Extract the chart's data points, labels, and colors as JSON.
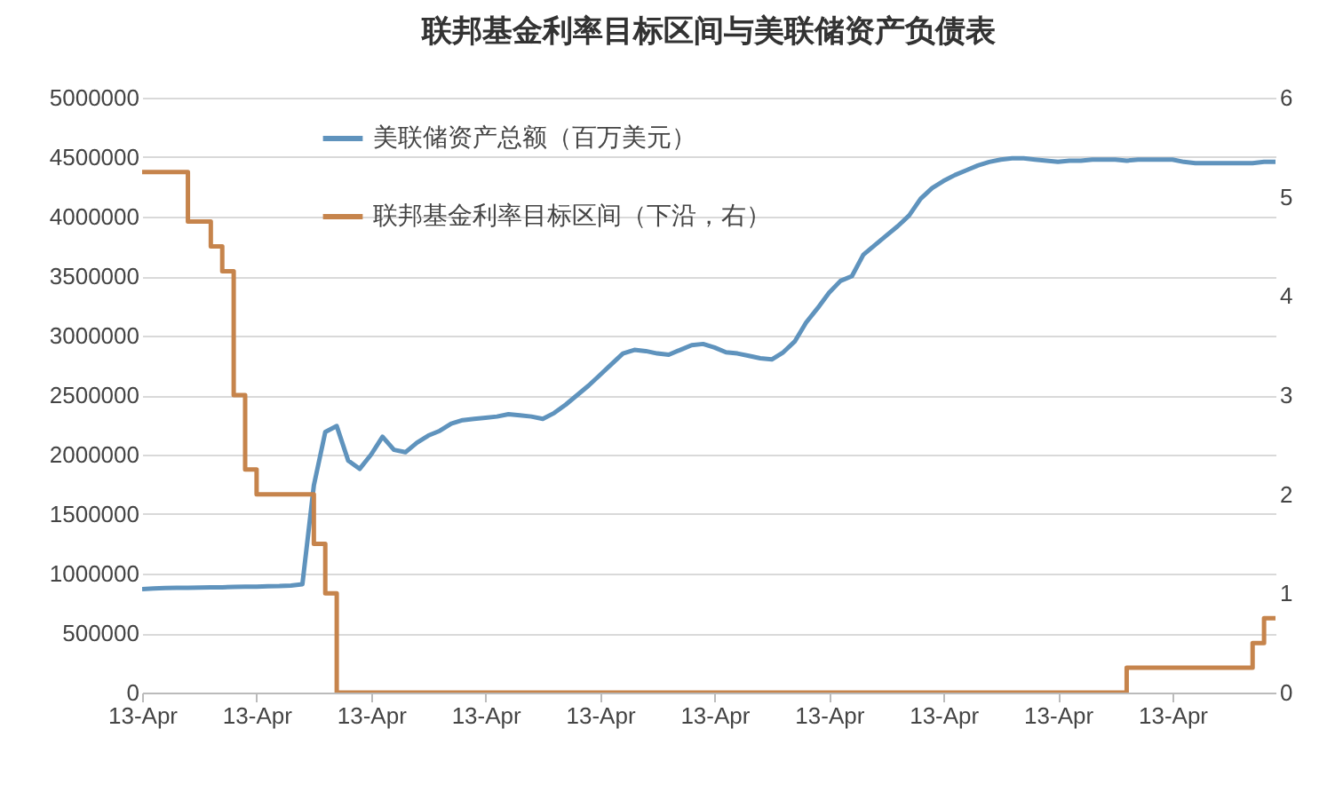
{
  "chart_data": {
    "type": "line",
    "title": "联邦基金利率目标区间与美联储资产负债表",
    "categories": [
      "13-Apr",
      null,
      null,
      null,
      null,
      null,
      null,
      null,
      null,
      null,
      "13-Apr",
      null,
      null,
      null,
      null,
      null,
      null,
      null,
      null,
      null,
      "13-Apr",
      null,
      null,
      null,
      null,
      null,
      null,
      null,
      null,
      null,
      "13-Apr",
      null,
      null,
      null,
      null,
      null,
      null,
      null,
      null,
      null,
      "13-Apr",
      null,
      null,
      null,
      null,
      null,
      null,
      null,
      null,
      null,
      "13-Apr",
      null,
      null,
      null,
      null,
      null,
      null,
      null,
      null,
      null,
      "13-Apr",
      null,
      null,
      null,
      null,
      null,
      null,
      null,
      null,
      null,
      "13-Apr",
      null,
      null,
      null,
      null,
      null,
      null,
      null,
      null,
      null,
      "13-Apr",
      null,
      null,
      null,
      null,
      null,
      null,
      null,
      null,
      null,
      "13-Apr",
      null,
      null,
      null,
      null,
      null,
      null,
      null,
      null,
      null
    ],
    "ylim": [
      0,
      5000000
    ],
    "yticks": [
      0,
      500000,
      1000000,
      1500000,
      2000000,
      2500000,
      3000000,
      3500000,
      4000000,
      4500000,
      5000000
    ],
    "y2lim": [
      0,
      6
    ],
    "y2ticks": [
      0,
      1,
      2,
      3,
      4,
      5,
      6
    ],
    "grid": "y",
    "legend": "top",
    "series": [
      {
        "name": "美联储资产总额（百万美元）",
        "color": "#5f93bd",
        "values": [
          870000,
          875000,
          878000,
          880000,
          880000,
          882000,
          885000,
          885000,
          888000,
          890000,
          890000,
          893000,
          895000,
          900000,
          910000,
          1740000,
          2190000,
          2240000,
          1950000,
          1880000,
          2000000,
          2150000,
          2040000,
          2020000,
          2100000,
          2160000,
          2200000,
          2260000,
          2290000,
          2300000,
          2310000,
          2320000,
          2340000,
          2330000,
          2320000,
          2300000,
          2350000,
          2420000,
          2500000,
          2580000,
          2670000,
          2760000,
          2850000,
          2880000,
          2870000,
          2850000,
          2840000,
          2880000,
          2920000,
          2930000,
          2900000,
          2860000,
          2850000,
          2830000,
          2810000,
          2800000,
          2860000,
          2950000,
          3110000,
          3230000,
          3360000,
          3460000,
          3500000,
          3680000,
          3760000,
          3840000,
          3920000,
          4010000,
          4150000,
          4240000,
          4300000,
          4350000,
          4390000,
          4430000,
          4460000,
          4480000,
          4490000,
          4490000,
          4480000,
          4470000,
          4460000,
          4470000,
          4470000,
          4480000,
          4480000,
          4480000,
          4470000,
          4480000,
          4480000,
          4480000,
          4480000,
          4460000,
          4450000,
          4450000,
          4450000,
          4450000,
          4450000,
          4450000,
          4460000,
          4460000
        ]
      },
      {
        "name": "联邦基金利率目标区间（下沿，右）",
        "type": "step",
        "axis": "y2",
        "color": "#c6844c",
        "values": [
          5.25,
          5.25,
          5.25,
          5.25,
          4.75,
          4.75,
          4.5,
          4.25,
          3.0,
          2.25,
          2.0,
          2.0,
          2.0,
          2.0,
          2.0,
          1.5,
          1.0,
          0,
          0,
          0,
          0,
          0,
          0,
          0,
          0,
          0,
          0,
          0,
          0,
          0,
          0,
          0,
          0,
          0,
          0,
          0,
          0,
          0,
          0,
          0,
          0,
          0,
          0,
          0,
          0,
          0,
          0,
          0,
          0,
          0,
          0,
          0,
          0,
          0,
          0,
          0,
          0,
          0,
          0,
          0,
          0,
          0,
          0,
          0,
          0,
          0,
          0,
          0,
          0,
          0,
          0,
          0,
          0,
          0,
          0,
          0,
          0,
          0,
          0,
          0,
          0,
          0,
          0,
          0,
          0,
          0,
          0.25,
          0.25,
          0.25,
          0.25,
          0.25,
          0.25,
          0.25,
          0.25,
          0.25,
          0.25,
          0.25,
          0.5,
          0.75,
          0.75
        ]
      }
    ]
  }
}
